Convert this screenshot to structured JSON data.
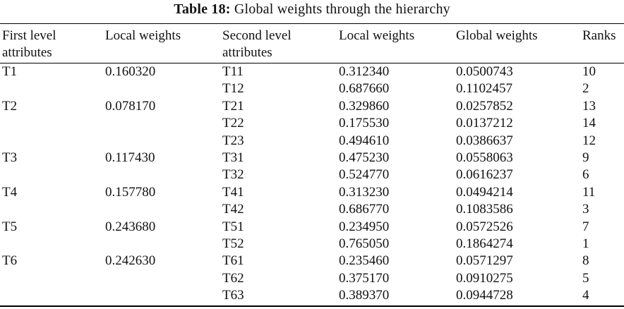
{
  "caption": {
    "label": "Table 18:",
    "text": "Global weights through the hierarchy"
  },
  "headers": {
    "first_level_line1": "First level",
    "first_level_line2": "attributes",
    "local_weights_1": "Local weights",
    "second_level_line1": "Second level",
    "second_level_line2": "attributes",
    "local_weights_2": "Local weights",
    "global_weights": "Global weights",
    "ranks": "Ranks"
  },
  "rows": [
    {
      "first": "T1",
      "local1": "0.160320",
      "second": "T11",
      "local2": "0.312340",
      "global": "0.0500743",
      "rank": "10"
    },
    {
      "first": "",
      "local1": "",
      "second": "T12",
      "local2": "0.687660",
      "global": "0.1102457",
      "rank": "2"
    },
    {
      "first": "T2",
      "local1": "0.078170",
      "second": "T21",
      "local2": "0.329860",
      "global": "0.0257852",
      "rank": "13"
    },
    {
      "first": "",
      "local1": "",
      "second": "T22",
      "local2": "0.175530",
      "global": "0.0137212",
      "rank": "14"
    },
    {
      "first": "",
      "local1": "",
      "second": "T23",
      "local2": "0.494610",
      "global": "0.0386637",
      "rank": "12"
    },
    {
      "first": "T3",
      "local1": "0.117430",
      "second": "T31",
      "local2": "0.475230",
      "global": "0.0558063",
      "rank": "9"
    },
    {
      "first": "",
      "local1": "",
      "second": "T32",
      "local2": "0.524770",
      "global": "0.0616237",
      "rank": "6"
    },
    {
      "first": "T4",
      "local1": "0.157780",
      "second": "T41",
      "local2": "0.313230",
      "global": "0.0494214",
      "rank": "11"
    },
    {
      "first": "",
      "local1": "",
      "second": "T42",
      "local2": "0.686770",
      "global": "0.1083586",
      "rank": "3"
    },
    {
      "first": "T5",
      "local1": "0.243680",
      "second": "T51",
      "local2": "0.234950",
      "global": "0.0572526",
      "rank": "7"
    },
    {
      "first": "",
      "local1": "",
      "second": "T52",
      "local2": "0.765050",
      "global": "0.1864274",
      "rank": "1"
    },
    {
      "first": "T6",
      "local1": "0.242630",
      "second": "T61",
      "local2": "0.235460",
      "global": "0.0571297",
      "rank": "8"
    },
    {
      "first": "",
      "local1": "",
      "second": "T62",
      "local2": "0.375170",
      "global": "0.0910275",
      "rank": "5"
    },
    {
      "first": "",
      "local1": "",
      "second": "T63",
      "local2": "0.389370",
      "global": "0.0944728",
      "rank": "4"
    }
  ]
}
